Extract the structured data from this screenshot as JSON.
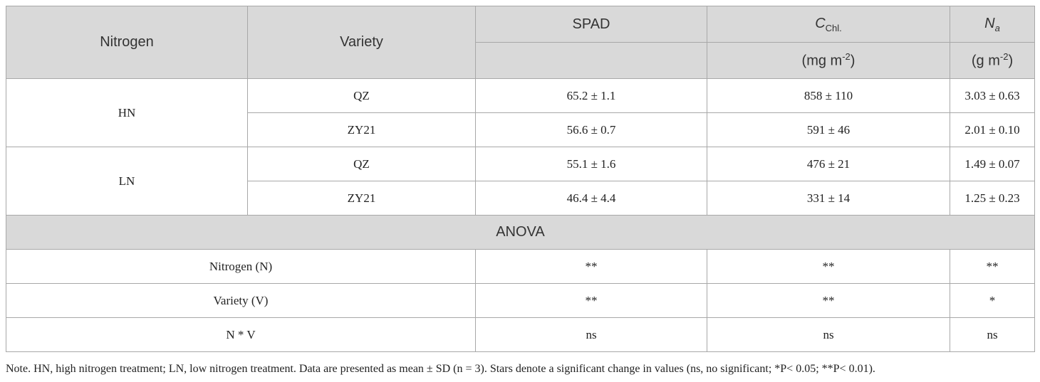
{
  "table": {
    "header": {
      "nitrogen": "Nitrogen",
      "variety": "Variety",
      "spad": "SPAD",
      "chl": {
        "symbol": "C",
        "subscript": "Chl.",
        "unit_prefix": "(mg m",
        "unit_exp": "-2",
        "unit_suffix": ")"
      },
      "na": {
        "symbol": "N",
        "subscript": "a",
        "unit_prefix": "(g m",
        "unit_exp": "-2",
        "unit_suffix": ")"
      }
    },
    "groups": [
      {
        "nitrogen": "HN",
        "rows": [
          [
            "QZ",
            "65.2 ± 1.1",
            "858 ± 110",
            "3.03 ± 0.63"
          ],
          [
            "ZY21",
            "56.6 ± 0.7",
            "591 ± 46",
            "2.01 ± 0.10"
          ]
        ]
      },
      {
        "nitrogen": "LN",
        "rows": [
          [
            "QZ",
            "55.1 ± 1.6",
            "476 ± 21",
            "1.49 ± 0.07"
          ],
          [
            "ZY21",
            "46.4 ± 4.4",
            "331 ± 14",
            "1.25 ± 0.23"
          ]
        ]
      }
    ],
    "anova_title": "ANOVA",
    "anova_rows": [
      [
        "Nitrogen (N)",
        "**",
        "**",
        "**"
      ],
      [
        "Variety (V)",
        "**",
        "**",
        "*"
      ],
      [
        "N * V",
        "ns",
        "ns",
        "ns"
      ]
    ]
  },
  "note": "Note. HN, high nitrogen treatment; LN, low nitrogen treatment. Data are presented as mean ± SD (n = 3). Stars denote a significant change in values (ns, no significant; *P< 0.05; **P< 0.01)."
}
